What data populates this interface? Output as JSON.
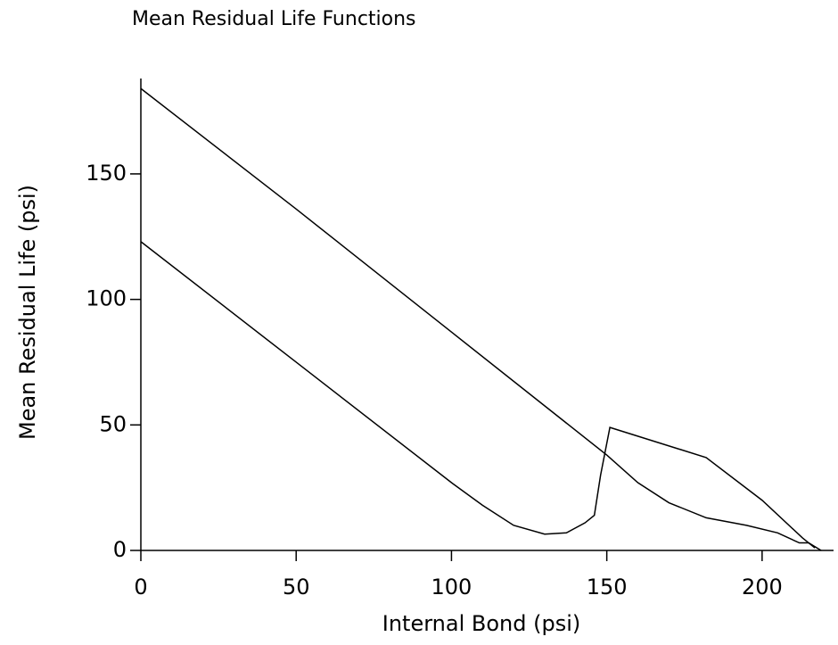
{
  "chart_data": {
    "type": "line",
    "title": "Mean Residual Life Functions",
    "xlabel": "Internal Bond (psi)",
    "ylabel": "Mean Residual Life (psi)",
    "xlim": [
      0,
      223
    ],
    "ylim": [
      0,
      188
    ],
    "xticks": [
      0,
      50,
      100,
      150,
      200
    ],
    "yticks": [
      0,
      50,
      100,
      150
    ],
    "grid": false,
    "series": [
      {
        "color": "#000000",
        "x": [
          0,
          50,
          100,
          150,
          160,
          170,
          182,
          195,
          205,
          212,
          215,
          219
        ],
        "values": [
          184,
          136,
          87,
          38,
          27,
          19,
          13,
          10,
          7,
          3,
          3,
          0
        ]
      },
      {
        "color": "#000000",
        "x": [
          0,
          50,
          100,
          110,
          120,
          130,
          137,
          143,
          146,
          148,
          151,
          182,
          200,
          213,
          217
        ],
        "values": [
          123,
          75,
          27,
          18,
          10,
          6.5,
          7,
          11,
          14,
          30,
          49,
          37,
          20,
          5,
          1
        ]
      }
    ]
  }
}
